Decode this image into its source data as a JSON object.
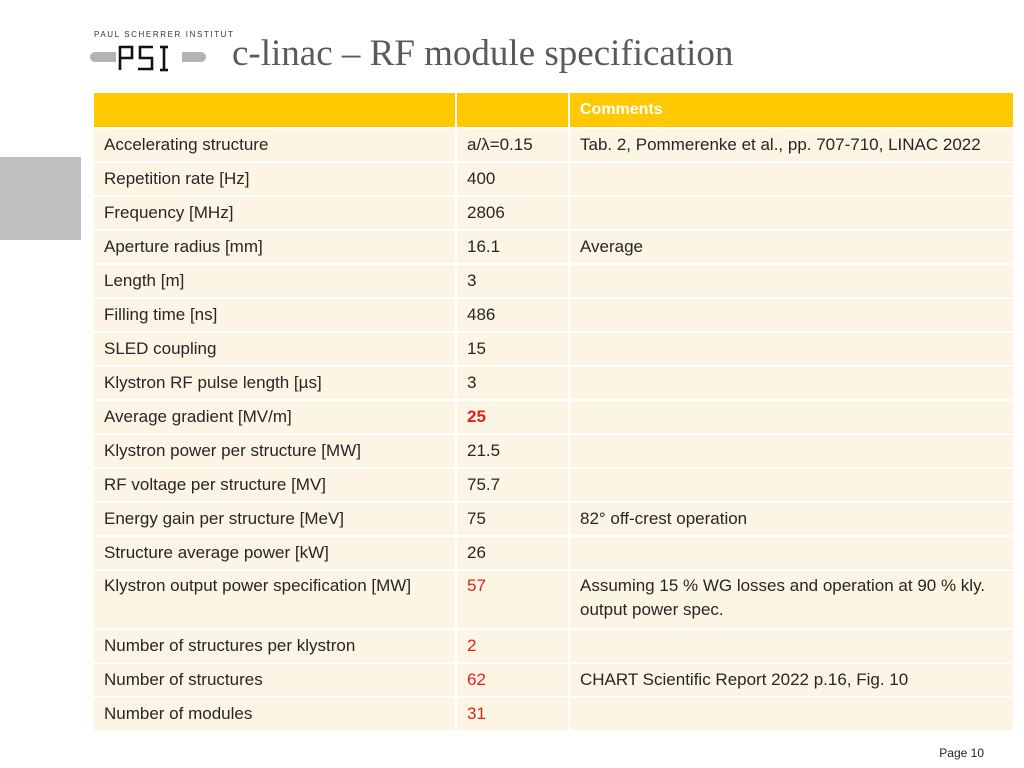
{
  "logo": {
    "institute": "PAUL SCHERRER INSTITUT",
    "mark": "PSI"
  },
  "title": "c-linac – RF module specification",
  "table": {
    "headers": [
      "",
      "",
      "Comments"
    ],
    "rows": [
      {
        "param": "Accelerating structure",
        "value": "a/λ=0.15",
        "comment": "Tab. 2, Pommerenke et al., pp. 707-710, LINAC 2022",
        "style": ""
      },
      {
        "param": "Repetition rate [Hz]",
        "value": "400",
        "comment": "",
        "style": ""
      },
      {
        "param": "Frequency [MHz]",
        "value": "2806",
        "comment": "",
        "style": ""
      },
      {
        "param": "Aperture radius [mm]",
        "value": "16.1",
        "comment": "Average",
        "style": ""
      },
      {
        "param": "Length [m]",
        "value": "3",
        "comment": "",
        "style": ""
      },
      {
        "param": "Filling time [ns]",
        "value": "486",
        "comment": "",
        "style": ""
      },
      {
        "param": "SLED coupling",
        "value": "15",
        "comment": "",
        "style": ""
      },
      {
        "param": "Klystron RF pulse length [µs]",
        "value": "3",
        "comment": "",
        "style": ""
      },
      {
        "param": "Average gradient [MV/m]",
        "value": "25",
        "comment": "",
        "style": "red-bold"
      },
      {
        "param": "Klystron power per structure [MW]",
        "value": "21.5",
        "comment": "",
        "style": ""
      },
      {
        "param": "RF voltage per structure [MV]",
        "value": "75.7",
        "comment": "",
        "style": ""
      },
      {
        "param": "Energy gain per structure [MeV]",
        "value": "75",
        "comment": "82° off-crest operation",
        "style": ""
      },
      {
        "param": "Structure average power [kW]",
        "value": "26",
        "comment": "",
        "style": ""
      },
      {
        "param": "Klystron output power specification [MW]",
        "value": "57",
        "comment": "Assuming 15 % WG losses and operation at 90 % kly. output power spec.",
        "style": "red",
        "tall": true
      },
      {
        "param": "Number of structures per klystron",
        "value": "2",
        "comment": "",
        "style": "red"
      },
      {
        "param": "Number of structures",
        "value": "62",
        "comment": "CHART Scientific Report 2022 p.16, Fig. 10",
        "style": "red"
      },
      {
        "param": "Number of modules",
        "value": "31",
        "comment": "",
        "style": "red"
      }
    ]
  },
  "footer": {
    "page": "Page 10"
  },
  "colors": {
    "header": "#ffc800",
    "row": "#fdf5e3",
    "highlight": "#e32020",
    "title": "#5a5a5a"
  }
}
